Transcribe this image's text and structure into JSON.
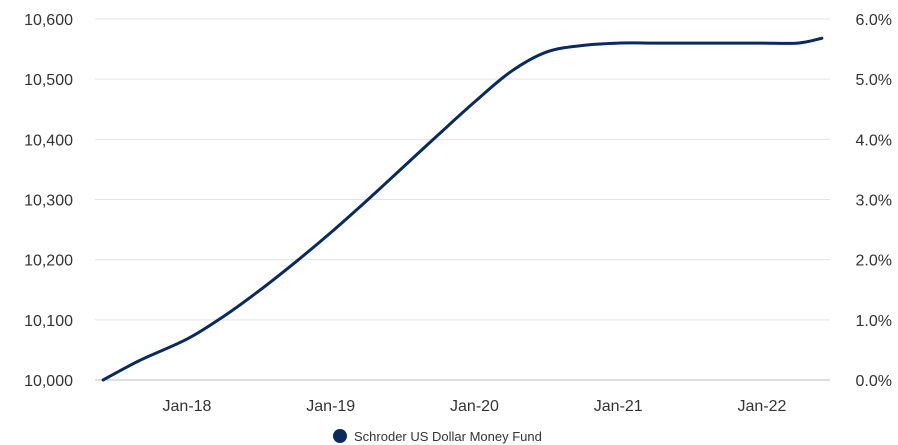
{
  "chart_data": {
    "type": "line",
    "title": "",
    "xlabel": "",
    "ylabel": "",
    "x_ticks": [
      "Jan-18",
      "Jan-19",
      "Jan-20",
      "Jan-21",
      "Jan-22"
    ],
    "y_ticks": [
      "10,000",
      "10,100",
      "10,200",
      "10,300",
      "10,400",
      "10,500",
      "10,600"
    ],
    "y2_ticks": [
      "0.0%",
      "1.0%",
      "2.0%",
      "3.0%",
      "4.0%",
      "5.0%",
      "6.0%"
    ],
    "ylim": [
      10000,
      10600
    ],
    "y2lim": [
      0,
      6
    ],
    "grid": true,
    "legend_position": "bottom",
    "series": [
      {
        "name": "Schroder US Dollar Money Fund",
        "color": "#0a2a5e",
        "x": [
          "2017-06",
          "2017-09",
          "2018-01",
          "2018-04",
          "2018-07",
          "2018-10",
          "2019-01",
          "2019-04",
          "2019-07",
          "2019-10",
          "2020-01",
          "2020-04",
          "2020-07",
          "2020-10",
          "2021-01",
          "2021-04",
          "2021-07",
          "2021-10",
          "2022-01",
          "2022-04",
          "2022-06"
        ],
        "values": [
          10000,
          10032,
          10068,
          10105,
          10148,
          10195,
          10245,
          10298,
          10353,
          10408,
          10462,
          10512,
          10545,
          10556,
          10560,
          10560,
          10560,
          10560,
          10560,
          10560,
          10568
        ]
      }
    ]
  }
}
